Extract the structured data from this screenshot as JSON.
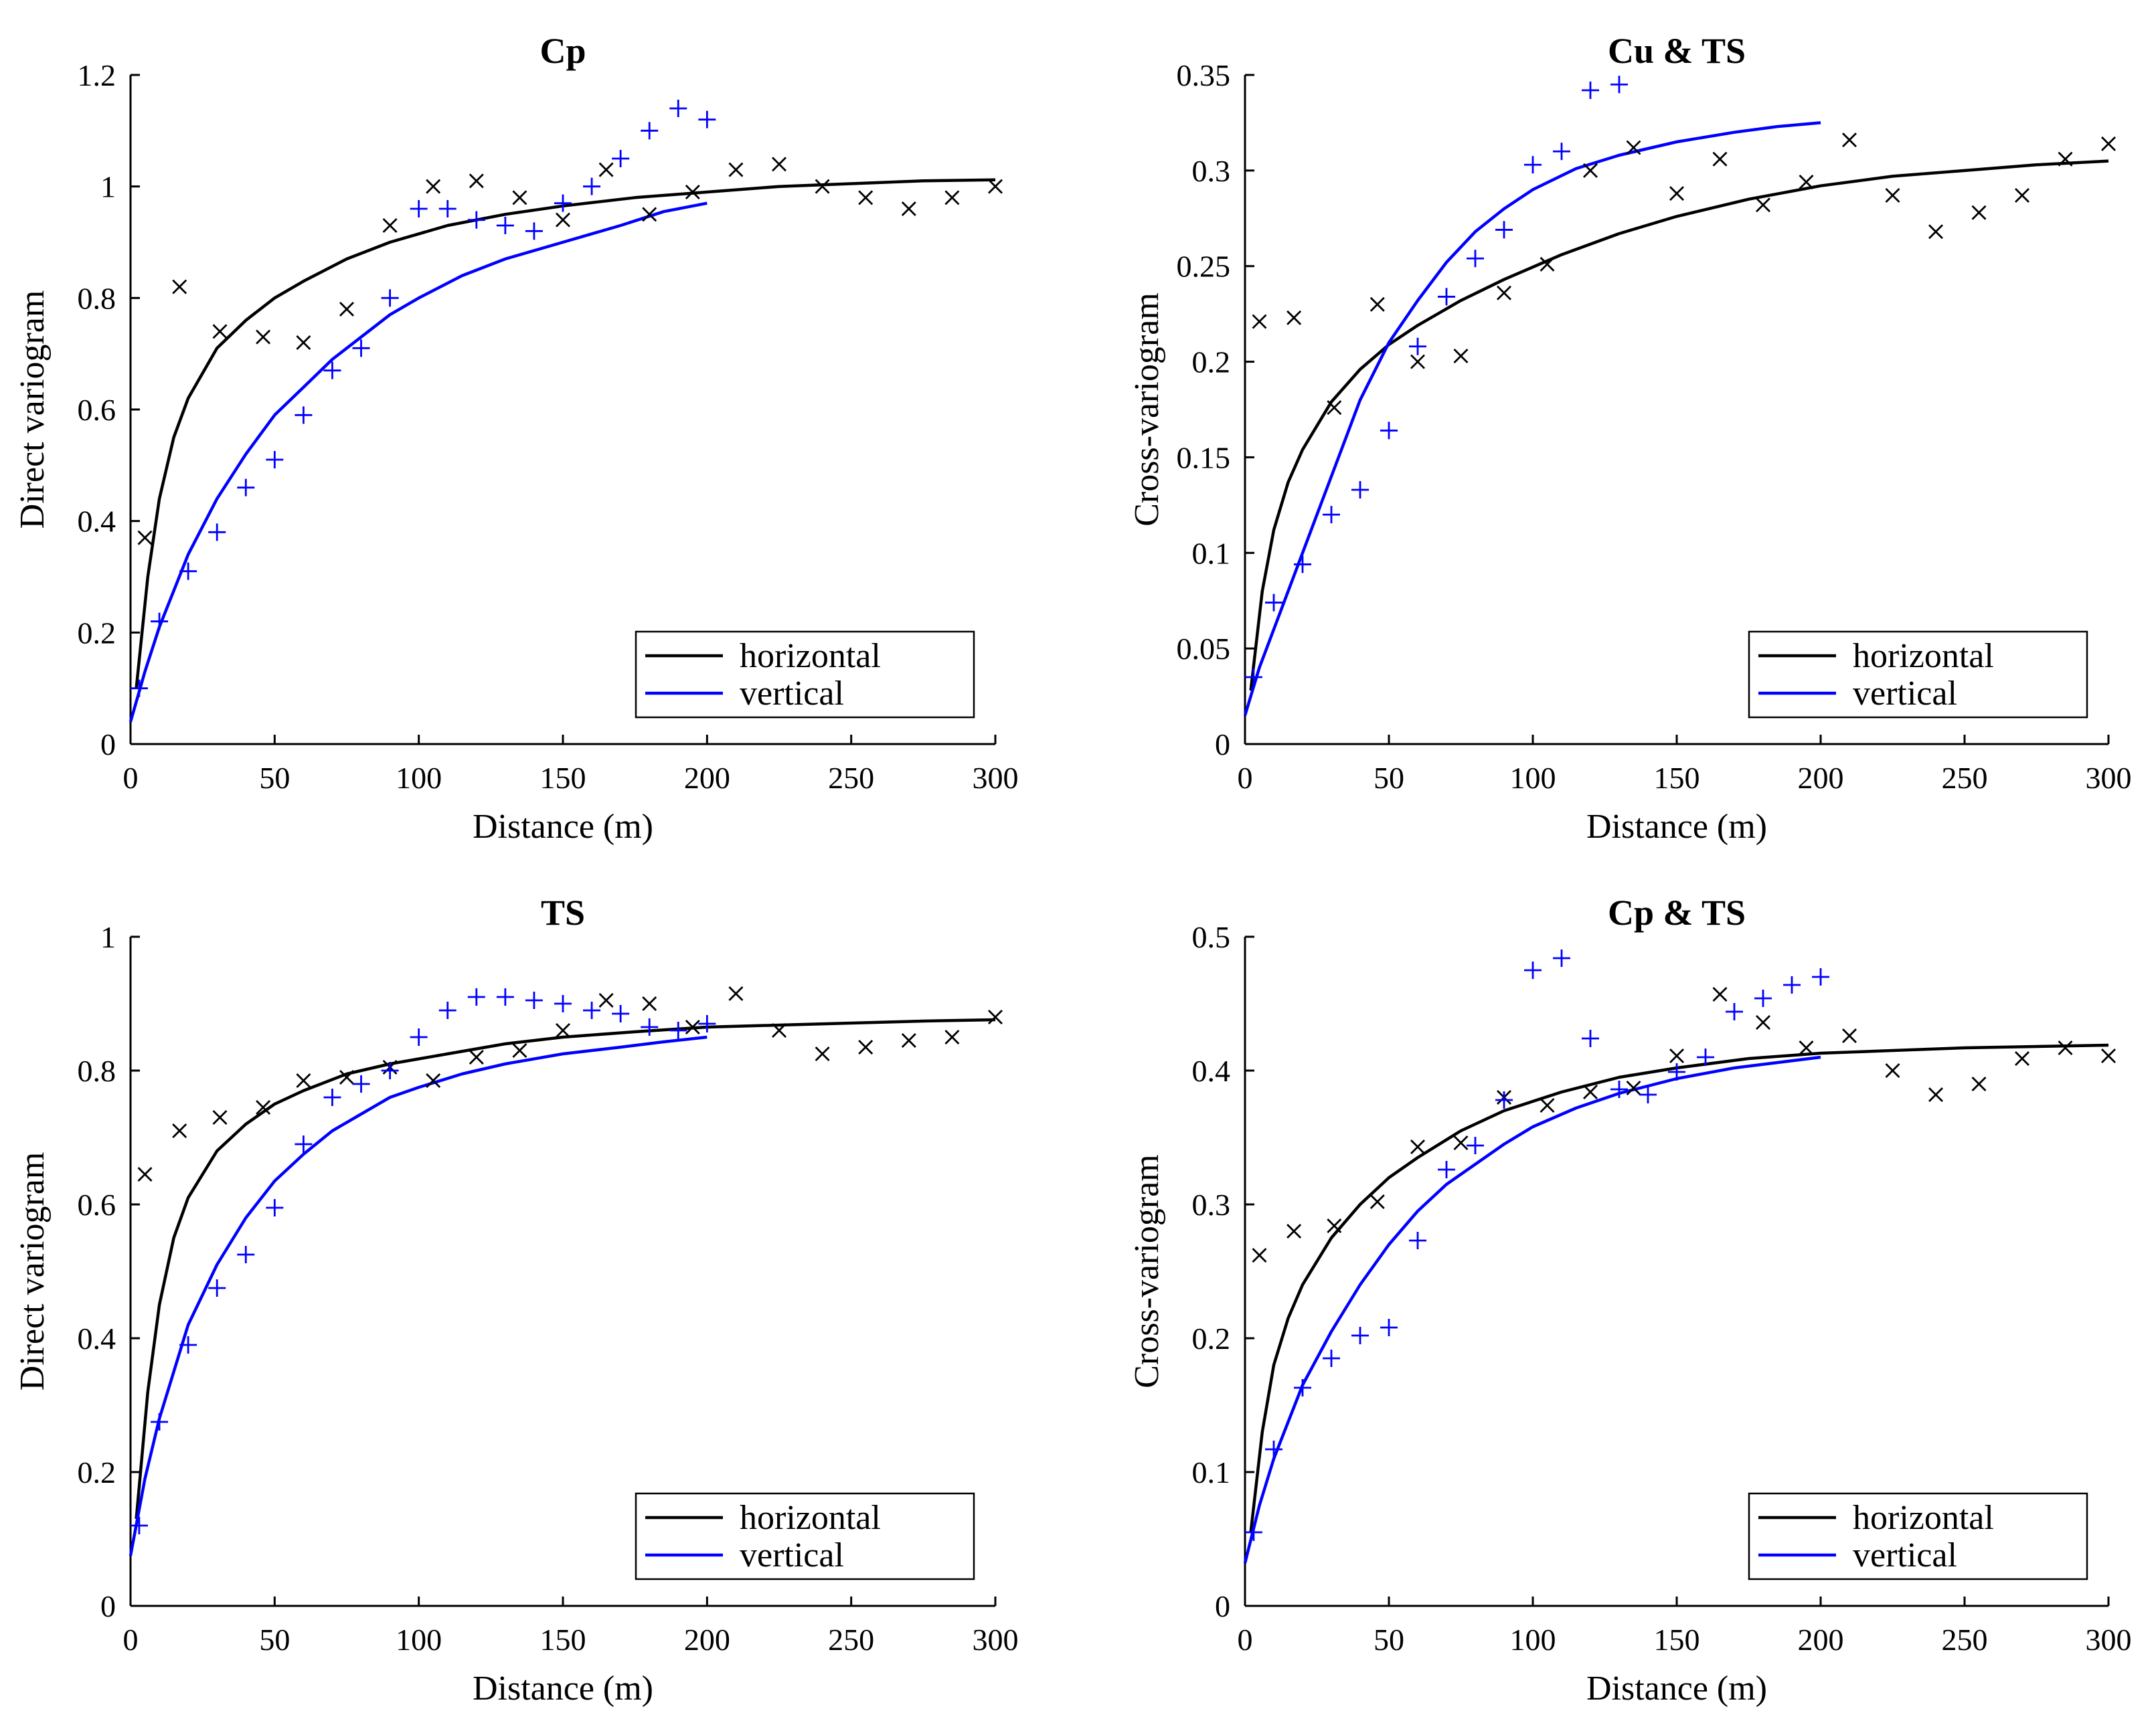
{
  "colors": {
    "horizontal": "#000000",
    "vertical": "#0000ff",
    "axis": "#000000",
    "legend_border": "#000000"
  },
  "chart_data": [
    {
      "id": "cp",
      "type": "scatter",
      "title": "Cp",
      "xlabel": "Distance (m)",
      "ylabel": "Direct variogram",
      "xlim": [
        0,
        300
      ],
      "ylim": [
        0,
        1.2
      ],
      "xticks": [
        0,
        50,
        100,
        150,
        200,
        250,
        300
      ],
      "yticks": [
        0,
        0.2,
        0.4,
        0.6,
        0.8,
        1,
        1.2
      ],
      "legend": {
        "position": "bottom-right",
        "entries": [
          "horizontal",
          "vertical"
        ]
      },
      "series": [
        {
          "name": "horizontal",
          "marker": "x",
          "x": [
            5,
            17,
            31,
            46,
            60,
            75,
            90,
            105,
            120,
            135,
            150,
            165,
            180,
            195,
            210,
            225,
            240,
            255,
            270,
            285,
            300
          ],
          "y": [
            0.37,
            0.82,
            0.74,
            0.73,
            0.72,
            0.78,
            0.93,
            1.0,
            1.01,
            0.98,
            0.94,
            1.03,
            0.95,
            0.99,
            1.03,
            1.04,
            1.0,
            0.98,
            0.96,
            0.98,
            1.0
          ]
        },
        {
          "name": "vertical",
          "marker": "+",
          "x": [
            3,
            10,
            20,
            30,
            40,
            50,
            60,
            70,
            80,
            90,
            100,
            110,
            120,
            130,
            140,
            150,
            160,
            170,
            180,
            190,
            200
          ],
          "y": [
            0.1,
            0.22,
            0.31,
            0.38,
            0.46,
            0.51,
            0.59,
            0.67,
            0.71,
            0.8,
            0.96,
            0.96,
            0.94,
            0.93,
            0.92,
            0.97,
            1.0,
            1.05,
            1.1,
            1.14,
            1.12
          ]
        }
      ],
      "fits": [
        {
          "name": "horizontal",
          "x": [
            2,
            6,
            10,
            15,
            20,
            30,
            40,
            50,
            60,
            75,
            90,
            110,
            130,
            150,
            175,
            200,
            225,
            250,
            275,
            300
          ],
          "y": [
            0.1,
            0.3,
            0.44,
            0.55,
            0.62,
            0.71,
            0.76,
            0.8,
            0.83,
            0.87,
            0.9,
            0.93,
            0.95,
            0.965,
            0.98,
            0.99,
            1.0,
            1.005,
            1.01,
            1.012
          ]
        },
        {
          "name": "vertical",
          "x": [
            0,
            5,
            10,
            20,
            30,
            40,
            50,
            60,
            70,
            80,
            90,
            100,
            115,
            130,
            150,
            170,
            185,
            200
          ],
          "y": [
            0.04,
            0.13,
            0.21,
            0.34,
            0.44,
            0.52,
            0.59,
            0.64,
            0.69,
            0.73,
            0.77,
            0.8,
            0.84,
            0.87,
            0.9,
            0.93,
            0.955,
            0.97
          ]
        }
      ]
    },
    {
      "id": "cu-ts",
      "type": "scatter",
      "title": "Cu & TS",
      "xlabel": "Distance (m)",
      "ylabel": "Cross-variogram",
      "xlim": [
        0,
        300
      ],
      "ylim": [
        0,
        0.35
      ],
      "xticks": [
        0,
        50,
        100,
        150,
        200,
        250,
        300
      ],
      "yticks": [
        0,
        0.05,
        0.1,
        0.15,
        0.2,
        0.25,
        0.3,
        0.35
      ],
      "legend": {
        "position": "bottom-right",
        "entries": [
          "horizontal",
          "vertical"
        ]
      },
      "series": [
        {
          "name": "horizontal",
          "marker": "x",
          "x": [
            5,
            17,
            31,
            46,
            60,
            75,
            90,
            105,
            120,
            135,
            150,
            165,
            180,
            195,
            210,
            225,
            240,
            255,
            270,
            285,
            300
          ],
          "y": [
            0.221,
            0.223,
            0.176,
            0.23,
            0.2,
            0.203,
            0.236,
            0.251,
            0.3,
            0.312,
            0.288,
            0.306,
            0.282,
            0.294,
            0.316,
            0.287,
            0.268,
            0.278,
            0.287,
            0.306,
            0.314
          ]
        },
        {
          "name": "vertical",
          "marker": "+",
          "x": [
            3,
            10,
            20,
            30,
            40,
            50,
            60,
            70,
            80,
            90,
            100,
            110,
            120,
            130
          ],
          "y": [
            0.035,
            0.074,
            0.094,
            0.12,
            0.133,
            0.164,
            0.208,
            0.234,
            0.254,
            0.269,
            0.303,
            0.31,
            0.342,
            0.345
          ]
        }
      ],
      "fits": [
        {
          "name": "horizontal",
          "x": [
            2,
            6,
            10,
            15,
            20,
            30,
            40,
            50,
            60,
            75,
            90,
            110,
            130,
            150,
            175,
            200,
            225,
            250,
            275,
            300
          ],
          "y": [
            0.028,
            0.08,
            0.112,
            0.137,
            0.154,
            0.179,
            0.196,
            0.209,
            0.219,
            0.232,
            0.243,
            0.256,
            0.267,
            0.276,
            0.285,
            0.292,
            0.297,
            0.3,
            0.303,
            0.305
          ]
        },
        {
          "name": "vertical",
          "x": [
            0,
            5,
            10,
            15,
            20,
            25,
            30,
            35,
            40,
            50,
            60,
            70,
            80,
            90,
            100,
            115,
            130,
            150,
            170,
            185,
            200
          ],
          "y": [
            0.015,
            0.04,
            0.06,
            0.08,
            0.1,
            0.12,
            0.14,
            0.16,
            0.18,
            0.21,
            0.232,
            0.252,
            0.268,
            0.28,
            0.29,
            0.301,
            0.308,
            0.315,
            0.32,
            0.323,
            0.325
          ]
        }
      ]
    },
    {
      "id": "ts",
      "type": "scatter",
      "title": "TS",
      "xlabel": "Distance (m)",
      "ylabel": "Direct variogram",
      "xlim": [
        0,
        300
      ],
      "ylim": [
        0,
        1
      ],
      "xticks": [
        0,
        50,
        100,
        150,
        200,
        250,
        300
      ],
      "yticks": [
        0,
        0.2,
        0.4,
        0.6,
        0.8,
        1
      ],
      "legend": {
        "position": "bottom-right",
        "entries": [
          "horizontal",
          "vertical"
        ]
      },
      "series": [
        {
          "name": "horizontal",
          "marker": "x",
          "x": [
            5,
            17,
            31,
            46,
            60,
            75,
            90,
            105,
            120,
            135,
            150,
            165,
            180,
            195,
            210,
            225,
            240,
            255,
            270,
            285,
            300
          ],
          "y": [
            0.645,
            0.71,
            0.73,
            0.745,
            0.785,
            0.79,
            0.805,
            0.785,
            0.82,
            0.83,
            0.86,
            0.905,
            0.9,
            0.865,
            0.915,
            0.86,
            0.825,
            0.835,
            0.845,
            0.85,
            0.88
          ]
        },
        {
          "name": "vertical",
          "marker": "+",
          "x": [
            3,
            10,
            20,
            30,
            40,
            50,
            60,
            70,
            80,
            90,
            100,
            110,
            120,
            130,
            140,
            150,
            160,
            170,
            180,
            190,
            200
          ],
          "y": [
            0.12,
            0.275,
            0.39,
            0.475,
            0.525,
            0.595,
            0.69,
            0.76,
            0.78,
            0.8,
            0.85,
            0.89,
            0.91,
            0.91,
            0.905,
            0.9,
            0.89,
            0.885,
            0.865,
            0.86,
            0.87
          ]
        }
      ],
      "fits": [
        {
          "name": "horizontal",
          "x": [
            2,
            6,
            10,
            15,
            20,
            30,
            40,
            50,
            60,
            75,
            90,
            110,
            130,
            150,
            175,
            200,
            225,
            250,
            275,
            300
          ],
          "y": [
            0.13,
            0.32,
            0.45,
            0.55,
            0.61,
            0.68,
            0.72,
            0.75,
            0.77,
            0.795,
            0.81,
            0.825,
            0.84,
            0.85,
            0.858,
            0.865,
            0.868,
            0.871,
            0.874,
            0.876
          ]
        },
        {
          "name": "vertical",
          "x": [
            0,
            5,
            10,
            20,
            30,
            40,
            50,
            60,
            70,
            80,
            90,
            100,
            115,
            130,
            150,
            170,
            185,
            200
          ],
          "y": [
            0.075,
            0.19,
            0.28,
            0.42,
            0.51,
            0.58,
            0.635,
            0.675,
            0.71,
            0.735,
            0.76,
            0.775,
            0.795,
            0.81,
            0.825,
            0.835,
            0.843,
            0.85
          ]
        }
      ]
    },
    {
      "id": "cp-ts",
      "type": "scatter",
      "title": "Cp & TS",
      "xlabel": "Distance (m)",
      "ylabel": "Cross-variogram",
      "xlim": [
        0,
        300
      ],
      "ylim": [
        0,
        0.5
      ],
      "xticks": [
        0,
        50,
        100,
        150,
        200,
        250,
        300
      ],
      "yticks": [
        0,
        0.1,
        0.2,
        0.3,
        0.4,
        0.5
      ],
      "legend": {
        "position": "bottom-right",
        "entries": [
          "horizontal",
          "vertical"
        ]
      },
      "series": [
        {
          "name": "horizontal",
          "marker": "x",
          "x": [
            5,
            17,
            31,
            46,
            60,
            75,
            90,
            105,
            120,
            135,
            150,
            165,
            180,
            195,
            210,
            225,
            240,
            255,
            270,
            285,
            300
          ],
          "y": [
            0.262,
            0.28,
            0.284,
            0.302,
            0.343,
            0.346,
            0.38,
            0.374,
            0.384,
            0.387,
            0.411,
            0.457,
            0.436,
            0.417,
            0.426,
            0.4,
            0.382,
            0.39,
            0.409,
            0.417,
            0.411
          ]
        },
        {
          "name": "vertical",
          "marker": "+",
          "x": [
            3,
            10,
            20,
            30,
            40,
            50,
            60,
            70,
            80,
            90,
            100,
            110,
            120,
            130,
            140,
            150,
            160,
            170,
            180,
            190,
            200
          ],
          "y": [
            0.055,
            0.117,
            0.163,
            0.185,
            0.202,
            0.208,
            0.273,
            0.326,
            0.344,
            0.378,
            0.475,
            0.484,
            0.424,
            0.386,
            0.382,
            0.399,
            0.41,
            0.444,
            0.454,
            0.464,
            0.47
          ]
        }
      ],
      "fits": [
        {
          "name": "horizontal",
          "x": [
            2,
            6,
            10,
            15,
            20,
            30,
            40,
            50,
            60,
            75,
            90,
            110,
            130,
            150,
            175,
            200,
            225,
            250,
            275,
            300
          ],
          "y": [
            0.055,
            0.13,
            0.18,
            0.215,
            0.24,
            0.275,
            0.3,
            0.32,
            0.335,
            0.355,
            0.37,
            0.384,
            0.395,
            0.402,
            0.409,
            0.413,
            0.415,
            0.417,
            0.418,
            0.419
          ]
        },
        {
          "name": "vertical",
          "x": [
            0,
            5,
            10,
            20,
            30,
            40,
            50,
            60,
            70,
            80,
            90,
            100,
            115,
            130,
            150,
            170,
            185,
            200
          ],
          "y": [
            0.032,
            0.075,
            0.11,
            0.165,
            0.205,
            0.24,
            0.27,
            0.295,
            0.315,
            0.33,
            0.345,
            0.358,
            0.372,
            0.383,
            0.394,
            0.402,
            0.406,
            0.41
          ]
        }
      ]
    }
  ]
}
